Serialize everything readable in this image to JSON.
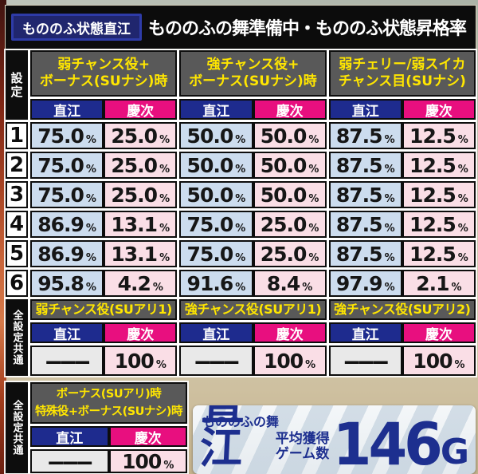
{
  "header": {
    "badge": "もののふ状態直江",
    "title": "もののふの舞準備中・もののふ状態昇格率"
  },
  "main_table": {
    "setting_label": "設定",
    "percent_symbol": "%",
    "groups": [
      {
        "title_line1": "弱チャンス役+",
        "title_line2": "ボーナス(SUナシ)時",
        "naoe": "直江",
        "keiji": "慶次"
      },
      {
        "title_line1": "強チャンス役+",
        "title_line2": "ボーナス(SUナシ)時",
        "naoe": "直江",
        "keiji": "慶次"
      },
      {
        "title_line1": "弱チェリー/弱スイカ",
        "title_line2": "チャンス目(SUナシ)",
        "naoe": "直江",
        "keiji": "慶次"
      }
    ],
    "settings": [
      "1",
      "2",
      "3",
      "4",
      "5",
      "6"
    ],
    "rows": [
      [
        "75.0",
        "25.0",
        "50.0",
        "50.0",
        "87.5",
        "12.5"
      ],
      [
        "75.0",
        "25.0",
        "50.0",
        "50.0",
        "87.5",
        "12.5"
      ],
      [
        "75.0",
        "25.0",
        "50.0",
        "50.0",
        "87.5",
        "12.5"
      ],
      [
        "86.9",
        "13.1",
        "75.0",
        "25.0",
        "87.5",
        "12.5"
      ],
      [
        "86.9",
        "13.1",
        "75.0",
        "25.0",
        "87.5",
        "12.5"
      ],
      [
        "95.8",
        "4.2",
        "91.6",
        "8.4",
        "97.9",
        "2.1"
      ]
    ]
  },
  "common_table_1": {
    "label": "全設定共通",
    "groups": [
      {
        "title": "弱チャンス役(SUアリ1)",
        "naoe": "直江",
        "keiji": "慶次",
        "naoe_value": "———",
        "keiji_value": "100"
      },
      {
        "title": "強チャンス役(SUアリ1)",
        "naoe": "直江",
        "keiji": "慶次",
        "naoe_value": "———",
        "keiji_value": "100"
      },
      {
        "title": "強チャンス役(SUアリ2)",
        "naoe": "直江",
        "keiji": "慶次",
        "naoe_value": "———",
        "keiji_value": "100"
      }
    ]
  },
  "common_table_2": {
    "label": "全設定共通",
    "title_line1": "ボーナス(SUアリ)時",
    "title_line2": "特殊役+ボーナス(SUナシ)時",
    "naoe": "直江",
    "keiji": "慶次",
    "naoe_value": "———",
    "keiji_value": "100"
  },
  "summary_badge": {
    "subtitle": "もののふの舞",
    "name": "直江",
    "label_line1": "平均獲得",
    "label_line2": "ゲーム数",
    "value_number": "146",
    "value_unit": "G"
  },
  "colors": {
    "naoe_header": "#1e2b8e",
    "keiji_header": "#e80f7f",
    "naoe_cell": "#ccdcee",
    "keiji_cell": "#fadee6",
    "group_header_bg": "#595959",
    "group_header_text": "#ffe600",
    "titlebar_bg": "#0c0c0c",
    "badge_navy": "#1d2f8f"
  },
  "chart_data": {
    "type": "table",
    "title": "もののふの舞準備中・もののふ状態昇格率(もののふ状態直江)",
    "categories": [
      "設定1",
      "設定2",
      "設定3",
      "設定4",
      "設定5",
      "設定6"
    ],
    "series": [
      {
        "name": "弱チャンス役+ボーナス(SUナシ)時 直江",
        "values": [
          75.0,
          75.0,
          75.0,
          86.9,
          86.9,
          95.8
        ]
      },
      {
        "name": "弱チャンス役+ボーナス(SUナシ)時 慶次",
        "values": [
          25.0,
          25.0,
          25.0,
          13.1,
          13.1,
          4.2
        ]
      },
      {
        "name": "強チャンス役+ボーナス(SUナシ)時 直江",
        "values": [
          50.0,
          50.0,
          50.0,
          75.0,
          75.0,
          91.6
        ]
      },
      {
        "name": "強チャンス役+ボーナス(SUナシ)時 慶次",
        "values": [
          50.0,
          50.0,
          50.0,
          25.0,
          25.0,
          8.4
        ]
      },
      {
        "name": "弱チェリー/弱スイカ・チャンス目(SUナシ) 直江",
        "values": [
          87.5,
          87.5,
          87.5,
          87.5,
          87.5,
          97.9
        ]
      },
      {
        "name": "弱チェリー/弱スイカ・チャンス目(SUナシ) 慶次",
        "values": [
          12.5,
          12.5,
          12.5,
          12.5,
          12.5,
          2.1
        ]
      }
    ],
    "all_settings_common": [
      {
        "name": "弱チャンス役(SUアリ1)",
        "naoe": null,
        "keiji": 100
      },
      {
        "name": "強チャンス役(SUアリ1)",
        "naoe": null,
        "keiji": 100
      },
      {
        "name": "強チャンス役(SUアリ2)",
        "naoe": null,
        "keiji": 100
      },
      {
        "name": "ボーナス(SUアリ)時/特殊役+ボーナス(SUナシ)時",
        "naoe": null,
        "keiji": 100
      }
    ],
    "summary": {
      "name": "もののふの舞 直江",
      "metric": "平均獲得ゲーム数",
      "value": "146G"
    },
    "unit": "%"
  }
}
